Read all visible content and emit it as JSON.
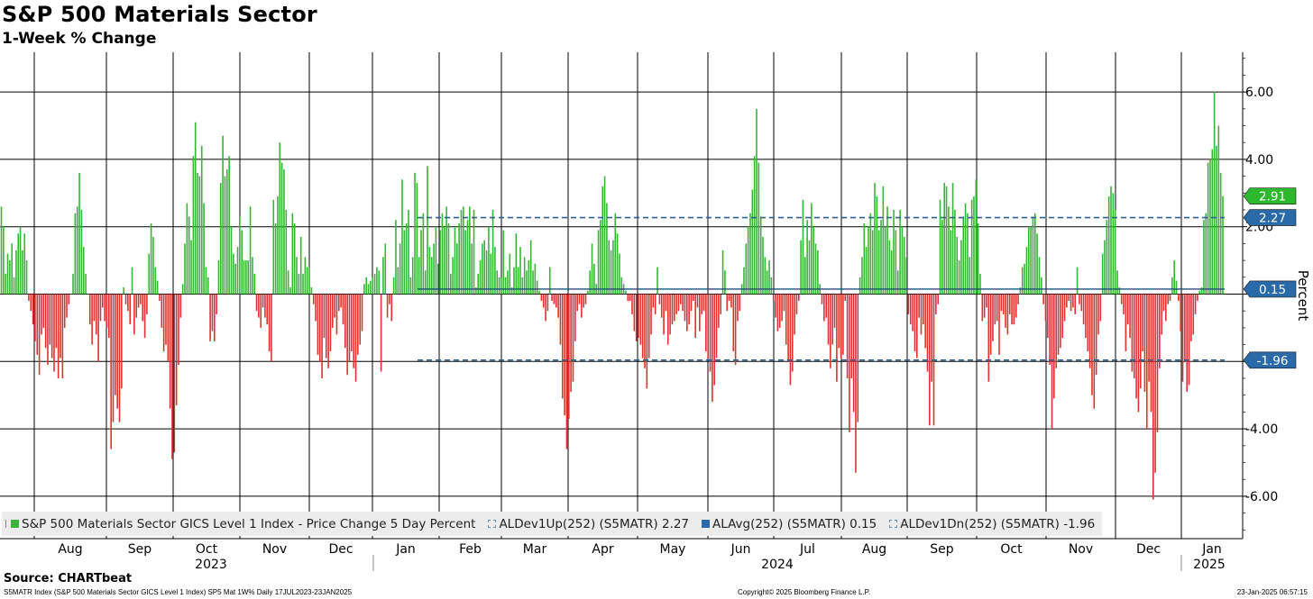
{
  "title": "S&P 500 Materials Sector",
  "subtitle": "1-Week % Change",
  "source": "Source: CHARTbeat",
  "footer": {
    "left": "S5MATR Index (S&P 500 Materials Sector GICS Level 1 Index) SP5 Mat 1W% Daily 17JUL2023-23JAN2025",
    "center": "Copyright© 2025 Bloomberg Finance L.P.",
    "right": "23-Jan-2025 06:57:15"
  },
  "legend": [
    {
      "label": "S&P 500 Materials Sector GICS Level 1 Index - Price Change 5 Day Percent",
      "swatch": "green"
    },
    {
      "label": "ALDev1Up(252) (S5MATR) 2.27",
      "swatch": "dash"
    },
    {
      "label": "ALAvg(252) (S5MATR) 0.15",
      "swatch": "blue"
    },
    {
      "label": "ALDev1Dn(252) (S5MATR) -1.96",
      "swatch": "dash"
    }
  ],
  "colors": {
    "positive": "#35b635",
    "negative": "#e03030",
    "avg_line": "#1f4e79",
    "dev_line": "#2f5f8f",
    "tag_green": "#2eb82e",
    "tag_blue": "#2b6aa8",
    "grid": "#000000"
  },
  "chart_data": {
    "type": "bar",
    "title": "S&P 500 Materials Sector",
    "subtitle": "1-Week % Change",
    "ylabel": "Percent",
    "ylim": [
      -7.0,
      7.0
    ],
    "yticks": [
      -6,
      -4,
      -2,
      0,
      2,
      4,
      6
    ],
    "ytick_labels": [
      "-6.00",
      "-4.00",
      "",
      "",
      "2.00",
      "4.00",
      "6.00"
    ],
    "months": [
      "Aug",
      "Sep",
      "Oct",
      "Nov",
      "Dec",
      "Jan",
      "Feb",
      "Mar",
      "Apr",
      "May",
      "Jun",
      "Jul",
      "Aug",
      "Sep",
      "Oct",
      "Nov",
      "Dec",
      "Jan"
    ],
    "years": [
      "2023",
      "2024",
      "2025"
    ],
    "reference_lines": {
      "dev_up": 2.27,
      "avg": 0.15,
      "dev_down": -1.96
    },
    "tags": [
      {
        "label": "2.91",
        "value": 2.91,
        "color": "green"
      },
      {
        "label": "2.27",
        "value": 2.27,
        "color": "blue"
      },
      {
        "label": "0.15",
        "value": 0.15,
        "color": "blue"
      },
      {
        "label": "-1.96",
        "value": -1.96,
        "color": "blue"
      }
    ],
    "series": [
      {
        "name": "S&P 500 Materials Sector GICS Level 1 Index - Price Change 5 Day Percent",
        "values": [
          2.6,
          2.0,
          0.6,
          1.2,
          1.0,
          1.5,
          0.5,
          1.3,
          1.8,
          2.0,
          1.3,
          1.8,
          1.0,
          -0.2,
          -0.5,
          -0.9,
          -1.4,
          -1.8,
          -2.4,
          -1.2,
          -1.0,
          -1.6,
          -2.1,
          -1.5,
          -1.9,
          -2.3,
          -1.6,
          -2.5,
          -1.9,
          -2.5,
          -1.0,
          -0.7,
          -0.3,
          0.0,
          0.6,
          2.4,
          2.6,
          3.6,
          2.5,
          1.4,
          0.6,
          0.0,
          -0.9,
          -1.5,
          -0.8,
          -1.2,
          -2.0,
          -0.8,
          -0.4,
          -0.8,
          -1.0,
          -1.3,
          -4.6,
          -3.8,
          -3.0,
          -3.4,
          -3.8,
          -2.8,
          0.2,
          -0.3,
          -0.5,
          -0.9,
          0.8,
          -1.2,
          -0.7,
          -0.4,
          -0.3,
          -0.8,
          -1.3,
          -0.6,
          1.2,
          2.1,
          1.7,
          0.8,
          0.4,
          -0.2,
          -1.0,
          -1.7,
          -1.5,
          -2.0,
          -3.4,
          -4.9,
          -4.7,
          -3.3,
          -2.1,
          -0.7,
          0.3,
          1.5,
          2.7,
          2.3,
          1.6,
          4.1,
          5.1,
          3.6,
          3.5,
          4.4,
          2.7,
          0.8,
          0.5,
          -1.4,
          -1.1,
          -1.4,
          -0.6,
          1.0,
          3.3,
          4.7,
          3.5,
          3.7,
          4.1,
          2.0,
          1.2,
          0.9,
          1.4,
          2.3,
          1.9,
          1.0,
          1.0,
          1.0,
          2.6,
          1.1,
          0.6,
          -0.5,
          -0.7,
          -1.0,
          -0.4,
          -0.7,
          -0.9,
          -1.7,
          -2.0,
          2.8,
          2.1,
          2.9,
          4.5,
          3.9,
          3.7,
          2.5,
          0.7,
          0.2,
          2.4,
          2.1,
          1.1,
          0.6,
          1.7,
          0.6,
          1.1,
          0.8,
          0.8,
          0.2,
          -0.3,
          -0.8,
          -1.8,
          -2.0,
          -2.5,
          -1.3,
          -1.9,
          -2.2,
          -1.7,
          -1.0,
          -0.7,
          -1.2,
          -0.5,
          -0.4,
          -0.9,
          -1.6,
          -2.4,
          -2.0,
          -1.7,
          -2.2,
          -2.6,
          -1.8,
          -1.5,
          -1.1,
          0.3,
          0.5,
          0.3,
          0.4,
          0.5,
          0.6,
          0.8,
          0.7,
          -2.3,
          1.1,
          1.5,
          -0.7,
          -0.3,
          -0.8,
          0.5,
          2.2,
          0.8,
          1.5,
          3.4,
          1.9,
          2.1,
          2.5,
          0.5,
          1.1,
          3.6,
          3.3,
          1.1,
          1.9,
          2.4,
          0.7,
          3.8,
          1.4,
          1.1,
          1.5,
          2.0,
          0.9,
          1.9,
          2.4,
          2.0,
          2.6,
          2.1,
          0.6,
          1.1,
          2.0,
          1.5,
          2.1,
          2.5,
          2.6,
          1.9,
          2.2,
          2.6,
          1.5,
          2.5,
          0.2,
          0.6,
          1.0,
          1.5,
          1.6,
          1.3,
          2.0,
          1.2,
          2.5,
          1.4,
          0.7,
          0.5,
          0.5,
          1.9,
          0.5,
          0.7,
          1.2,
          0.2,
          0.8,
          1.8,
          0.8,
          1.4,
          0.5,
          1.1,
          0.7,
          1.0,
          1.6,
          0.7,
          0.9,
          0.4,
          0.1,
          -0.2,
          -0.4,
          -0.8,
          -0.5,
          0.8,
          -0.2,
          -0.3,
          -0.4,
          -0.7,
          -1.5,
          -3.1,
          -3.6,
          -4.6,
          -3.7,
          -2.9,
          -2.6,
          -1.4,
          -0.5,
          -0.3,
          -0.7,
          -0.4,
          -0.3,
          0.1,
          0.7,
          1.5,
          0.9,
          0.3,
          1.9,
          2.2,
          3.2,
          3.5,
          2.7,
          1.6,
          1.3,
          1.6,
          2.4,
          1.8,
          1.2,
          0.5,
          0.3,
          0.1,
          -0.2,
          -0.2,
          -0.6,
          -1.1,
          -1.4,
          -1.3,
          -1.5,
          -1.9,
          -2.2,
          -2.8,
          -1.9,
          -1.2,
          -0.4,
          -0.6,
          0.8,
          -0.3,
          -0.7,
          -1.2,
          -0.5,
          -1.5,
          -1.2,
          -0.9,
          -0.8,
          -0.6,
          -0.5,
          -0.3,
          -0.5,
          -0.8,
          -1.1,
          -0.9,
          -0.5,
          -0.2,
          -1.3,
          -0.4,
          -1.1,
          -0.6,
          -0.5,
          -1.7,
          -1.9,
          -2.3,
          -3.2,
          -2.7,
          -1.9,
          -1.0,
          -0.6,
          1.3,
          0.7,
          -0.5,
          -0.2,
          -0.4,
          -1.7,
          -2.1,
          -0.8,
          -0.5,
          0.3,
          0.8,
          1.5,
          2.0,
          2.4,
          3.1,
          4.1,
          5.5,
          3.9,
          2.3,
          1.7,
          1.1,
          0.7,
          1.0,
          0.5,
          -0.2,
          -0.7,
          -1.1,
          -1.0,
          -0.8,
          -0.5,
          -1.5,
          -2.0,
          -2.7,
          -2.3,
          -1.2,
          -0.6,
          -0.2,
          1.6,
          2.8,
          1.1,
          2.2,
          1.6,
          2.7,
          2.0,
          1.5,
          1.3,
          0.3,
          -0.3,
          -0.8,
          -0.7,
          -1.5,
          -2.2,
          -1.5,
          -1.0,
          -2.6,
          -1.6,
          -1.9,
          -1.8,
          -0.2,
          -2.5,
          -4.1,
          -2.5,
          -3.5,
          -5.3,
          -3.8,
          0.5,
          1.1,
          2.1,
          1.4,
          2.0,
          2.4,
          1.9,
          3.3,
          2.9,
          1.9,
          2.2,
          3.2,
          2.0,
          2.6,
          1.6,
          1.3,
          2.5,
          1.9,
          0.7,
          2.5,
          2.0,
          1.7,
          1.1,
          -0.6,
          -0.9,
          -1.1,
          -1.7,
          -1.9,
          -0.7,
          -1.2,
          -0.9,
          -1.6,
          -2.3,
          -3.9,
          -2.6,
          -3.9,
          -0.6,
          -0.3,
          2.8,
          2.2,
          3.3,
          3.2,
          2.6,
          1.9,
          3.3,
          2.5,
          1.7,
          1.0,
          1.6,
          2.3,
          2.7,
          2.4,
          1.1,
          2.8,
          2.9,
          3.4,
          2.1,
          0.6,
          -0.8,
          -0.7,
          -0.4,
          -2.6,
          -1.8,
          -1.4,
          -0.9,
          -0.8,
          -1.8,
          -0.5,
          -0.6,
          -1.0,
          -1.2,
          -0.6,
          -0.9,
          -0.9,
          -0.7,
          -0.3,
          0.2,
          0.8,
          0.9,
          1.4,
          2.0,
          2.0,
          2.3,
          2.4,
          1.8,
          1.1,
          0.5,
          -0.3,
          -0.8,
          -1.3,
          -2.1,
          -4.0,
          -3.1,
          -2.2,
          -1.8,
          -1.6,
          -1.3,
          -0.8,
          -0.4,
          -0.2,
          -0.5,
          -0.4,
          -0.6,
          0.8,
          -0.3,
          -0.5,
          -0.9,
          -1.3,
          -1.7,
          -2.2,
          -3.0,
          -3.4,
          -2.4,
          -1.2,
          -0.8,
          1.2,
          1.6,
          2.2,
          2.9,
          3.2,
          3.0,
          2.5,
          0.7,
          0.2,
          -0.3,
          -0.6,
          -1.7,
          -0.9,
          -1.3,
          -2.3,
          -2.5,
          -3.1,
          -3.5,
          -2.8,
          -1.7,
          -2.9,
          -4.0,
          -2.6,
          -3.5,
          -6.1,
          -5.3,
          -4.1,
          -2.2,
          -1.2,
          -0.5,
          -0.8,
          -0.3,
          -0.2,
          0.5,
          1.0,
          0.4,
          -0.2,
          -1.1,
          -2.6,
          -2.0,
          -2.9,
          -2.7,
          -1.4,
          -1.2,
          -0.6,
          -0.2,
          0.1,
          0.2,
          2.2,
          2.4,
          3.9,
          4.0,
          4.3,
          6.0,
          4.4,
          5.0,
          3.6,
          2.91
        ]
      }
    ]
  }
}
